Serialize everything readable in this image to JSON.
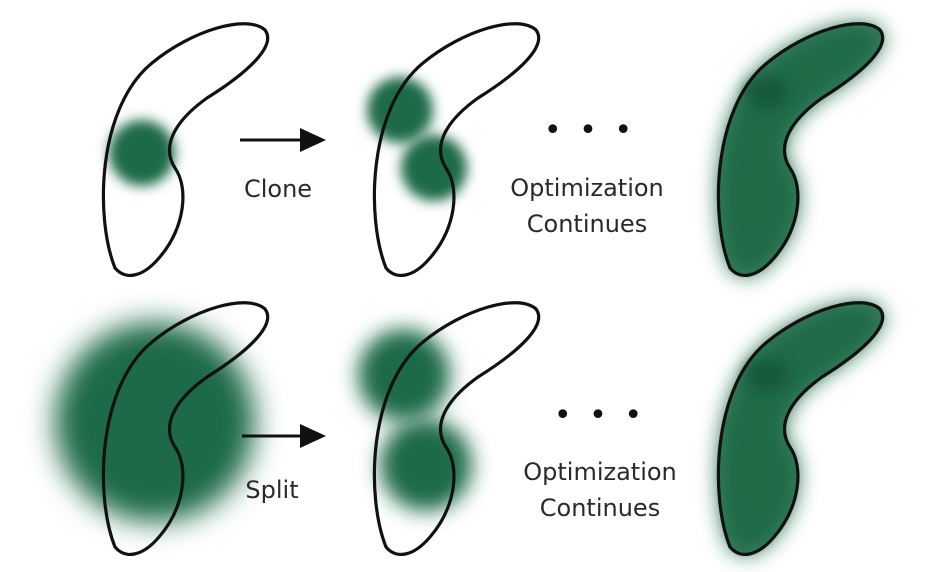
{
  "colors": {
    "gaussian": "#1f6b46",
    "outline": "#111111",
    "arrow": "#111111",
    "text": "#2a2a2a"
  },
  "rows": [
    {
      "operation_label": "Clone",
      "ellipsis": "• • •",
      "continue_label_line1": "Optimization",
      "continue_label_line2": "Continues"
    },
    {
      "operation_label": "Split",
      "ellipsis": "• • •",
      "continue_label_line1": "Optimization",
      "continue_label_line2": "Continues"
    }
  ]
}
